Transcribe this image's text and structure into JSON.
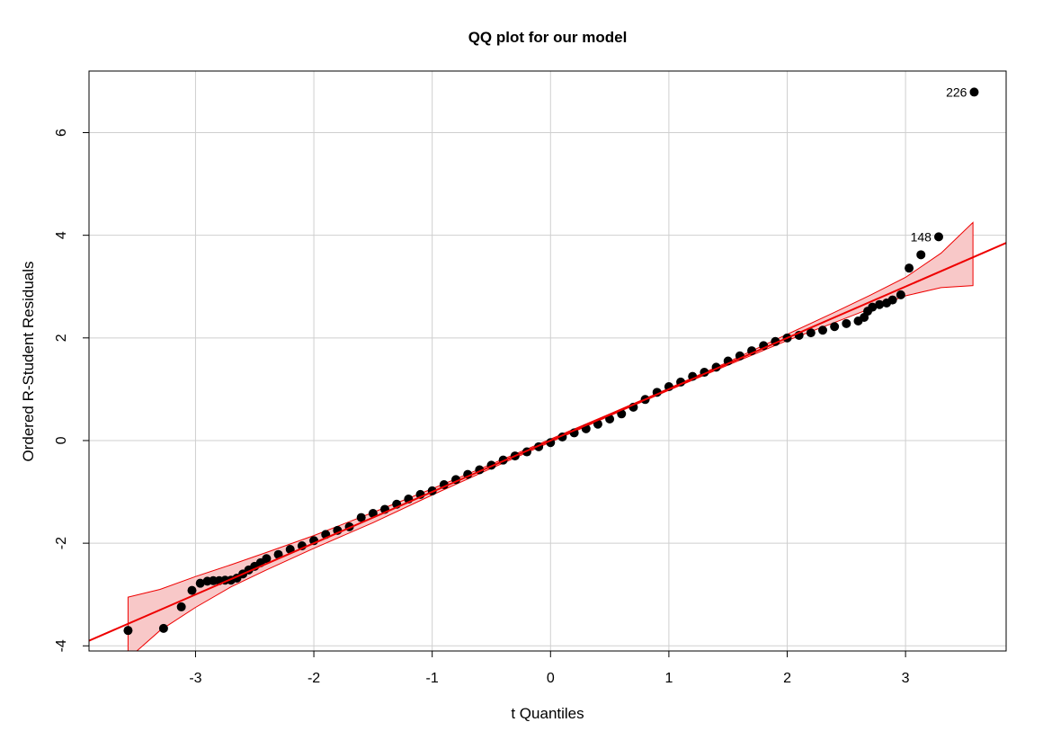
{
  "chart_data": {
    "type": "scatter",
    "title": "QQ plot for our model",
    "xlabel": "t Quantiles",
    "ylabel": "Ordered R-Student Residuals",
    "xlim": [
      -3.9,
      3.85
    ],
    "ylim": [
      -4.1,
      7.2
    ],
    "xticks": [
      -3,
      -2,
      -1,
      0,
      1,
      2,
      3
    ],
    "yticks": [
      -4,
      -2,
      0,
      2,
      4,
      6
    ],
    "grid": true,
    "reference_line": {
      "slope": 1.0,
      "intercept": 0.0,
      "color": "#ee0000"
    },
    "confidence_band": {
      "color": "#ee0000",
      "fill": "#f8c8c8",
      "x": [
        -3.57,
        -3.3,
        -3.0,
        -2.7,
        -2.4,
        -2.0,
        -1.5,
        -1.0,
        -0.5,
        0.0,
        0.5,
        1.0,
        1.5,
        2.0,
        2.4,
        2.7,
        3.0,
        3.3,
        3.57
      ],
      "upper": [
        -3.05,
        -2.9,
        -2.65,
        -2.42,
        -2.18,
        -1.85,
        -1.4,
        -0.94,
        -0.46,
        0.03,
        0.52,
        1.02,
        1.53,
        2.07,
        2.5,
        2.83,
        3.18,
        3.65,
        4.25
      ],
      "lower": [
        -4.25,
        -3.7,
        -3.25,
        -2.85,
        -2.52,
        -2.1,
        -1.6,
        -1.06,
        -0.54,
        -0.03,
        0.48,
        0.98,
        1.47,
        1.95,
        2.3,
        2.57,
        2.82,
        2.98,
        3.02
      ]
    },
    "series": [
      {
        "color": "#000000",
        "points": [
          [
            -3.57,
            -3.7
          ],
          [
            -3.27,
            -3.66
          ],
          [
            -3.12,
            -3.24
          ],
          [
            -3.03,
            -2.92
          ],
          [
            -2.96,
            -2.78
          ],
          [
            -2.9,
            -2.74
          ],
          [
            -2.85,
            -2.73
          ],
          [
            -2.8,
            -2.73
          ],
          [
            -2.75,
            -2.72
          ],
          [
            -2.7,
            -2.72
          ],
          [
            -2.65,
            -2.68
          ],
          [
            -2.6,
            -2.6
          ],
          [
            -2.55,
            -2.52
          ],
          [
            -2.5,
            -2.45
          ],
          [
            -2.45,
            -2.38
          ],
          [
            -2.4,
            -2.3
          ],
          [
            -2.3,
            -2.22
          ],
          [
            -2.2,
            -2.12
          ],
          [
            -2.1,
            -2.05
          ],
          [
            -2.0,
            -1.95
          ],
          [
            -1.9,
            -1.83
          ],
          [
            -1.8,
            -1.75
          ],
          [
            -1.7,
            -1.68
          ],
          [
            -1.6,
            -1.5
          ],
          [
            -1.5,
            -1.42
          ],
          [
            -1.4,
            -1.34
          ],
          [
            -1.3,
            -1.24
          ],
          [
            -1.2,
            -1.14
          ],
          [
            -1.1,
            -1.05
          ],
          [
            -1.0,
            -0.98
          ],
          [
            -0.9,
            -0.86
          ],
          [
            -0.8,
            -0.76
          ],
          [
            -0.7,
            -0.66
          ],
          [
            -0.6,
            -0.57
          ],
          [
            -0.5,
            -0.48
          ],
          [
            -0.4,
            -0.38
          ],
          [
            -0.3,
            -0.3
          ],
          [
            -0.2,
            -0.22
          ],
          [
            -0.1,
            -0.12
          ],
          [
            0.0,
            -0.04
          ],
          [
            0.1,
            0.07
          ],
          [
            0.2,
            0.15
          ],
          [
            0.3,
            0.23
          ],
          [
            0.4,
            0.32
          ],
          [
            0.5,
            0.42
          ],
          [
            0.6,
            0.52
          ],
          [
            0.7,
            0.65
          ],
          [
            0.8,
            0.8
          ],
          [
            0.9,
            0.94
          ],
          [
            1.0,
            1.05
          ],
          [
            1.1,
            1.14
          ],
          [
            1.2,
            1.25
          ],
          [
            1.3,
            1.33
          ],
          [
            1.4,
            1.43
          ],
          [
            1.5,
            1.55
          ],
          [
            1.6,
            1.65
          ],
          [
            1.7,
            1.75
          ],
          [
            1.8,
            1.85
          ],
          [
            1.9,
            1.93
          ],
          [
            2.0,
            2.0
          ],
          [
            2.1,
            2.05
          ],
          [
            2.2,
            2.1
          ],
          [
            2.3,
            2.15
          ],
          [
            2.4,
            2.22
          ],
          [
            2.5,
            2.28
          ],
          [
            2.6,
            2.33
          ],
          [
            2.65,
            2.4
          ],
          [
            2.68,
            2.52
          ],
          [
            2.72,
            2.6
          ],
          [
            2.78,
            2.65
          ],
          [
            2.84,
            2.68
          ],
          [
            2.89,
            2.74
          ],
          [
            2.96,
            2.84
          ],
          [
            3.03,
            3.36
          ],
          [
            3.13,
            3.62
          ],
          [
            3.28,
            3.97
          ],
          [
            3.58,
            6.79
          ]
        ]
      }
    ],
    "labeled_points": [
      {
        "label": "226",
        "x": 3.58,
        "y": 6.79
      },
      {
        "label": "148",
        "x": 3.28,
        "y": 3.97
      }
    ]
  }
}
